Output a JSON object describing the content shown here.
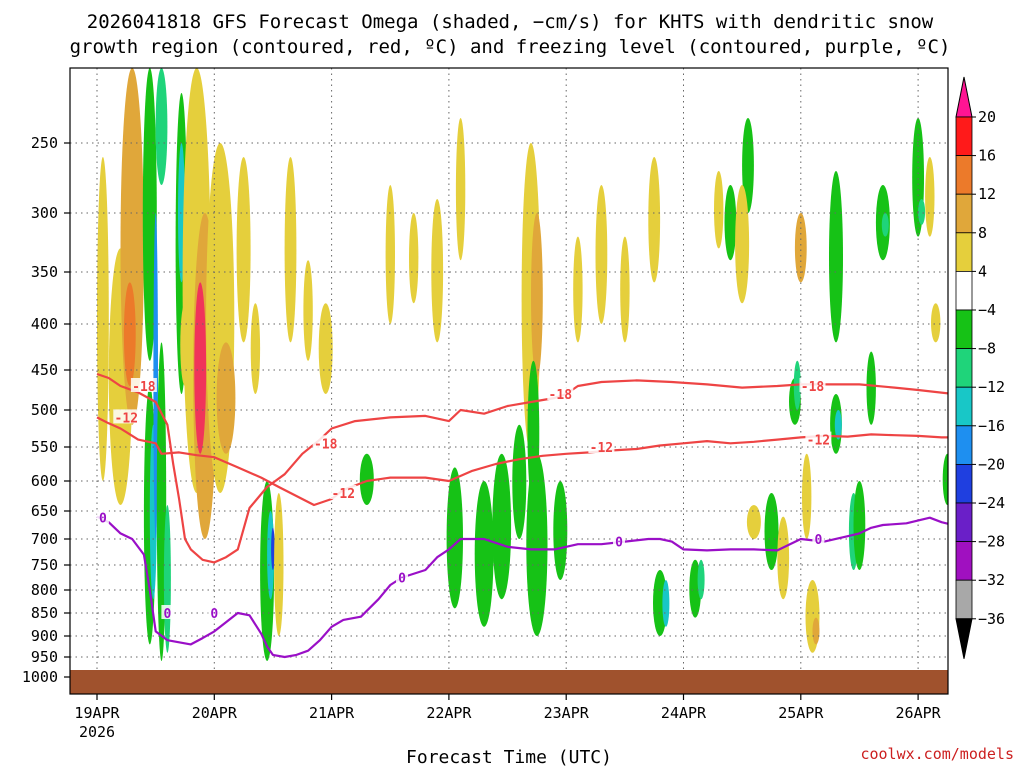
{
  "title_line1": "2026041818 GFS Forecast Omega (shaded, −cm/s) for KHTS with dendritic snow",
  "title_line2": "growth region (contoured, red, ºC) and freezing level (contoured, purple, ºC)",
  "xlabel": "Forecast Time (UTC)",
  "credit": "coolwx.com/models",
  "colors": {
    "red_contour": "#ee4444",
    "purple_contour": "#9a0fc7",
    "ground": "#a0522d",
    "grid": "#666666"
  },
  "chart_data": {
    "type": "heatmap",
    "y_axis": {
      "scale": "pressure",
      "reversed": true,
      "ticks": [
        "250",
        "300",
        "350",
        "400",
        "450",
        "500",
        "550",
        "600",
        "650",
        "700",
        "750",
        "800",
        "850",
        "900",
        "950",
        "1000"
      ]
    },
    "x_axis": {
      "ticks": [
        "19APR",
        "20APR",
        "21APR",
        "22APR",
        "23APR",
        "24APR",
        "25APR",
        "26APR"
      ],
      "year_label": "2026"
    },
    "grid": true,
    "colorbar": {
      "placement": "right",
      "labels": [
        "20",
        "16",
        "12",
        "8",
        "4",
        "−4",
        "−8",
        "−12",
        "−16",
        "−20",
        "−24",
        "−28",
        "−32",
        "−36"
      ],
      "colors": [
        "#ff1a1a",
        "#ec7a2a",
        "#e0a73a",
        "#e5cf3c",
        "#ffffff",
        "#16c216",
        "#1fd47a",
        "#18c7c7",
        "#1e8ff0",
        "#1f3fe0",
        "#6a1fc8",
        "#a010c0",
        "#a8a8a8"
      ],
      "top_cap": "#ff1493",
      "bottom_cap": "#000000"
    },
    "contour_labels": {
      "red": [
        "-18",
        "-12",
        "-18",
        "-12",
        "-18",
        "-12",
        "-18",
        "-12"
      ],
      "purple": [
        "0",
        "0",
        "0",
        "0",
        "0",
        "0"
      ]
    },
    "series": [
      {
        "name": "-18",
        "color": "#ee4444",
        "points": [
          [
            19.0,
            455
          ],
          [
            19.1,
            460
          ],
          [
            19.2,
            470
          ],
          [
            19.35,
            478
          ],
          [
            19.5,
            490
          ],
          [
            19.6,
            520
          ],
          [
            19.65,
            575
          ],
          [
            19.7,
            630
          ],
          [
            19.75,
            700
          ],
          [
            19.8,
            720
          ],
          [
            19.9,
            740
          ],
          [
            20.0,
            745
          ],
          [
            20.1,
            735
          ],
          [
            20.2,
            720
          ],
          [
            20.3,
            645
          ],
          [
            20.45,
            610
          ],
          [
            20.6,
            590
          ],
          [
            20.75,
            560
          ],
          [
            20.9,
            540
          ],
          [
            21.0,
            525
          ],
          [
            21.2,
            515
          ],
          [
            21.5,
            510
          ],
          [
            21.8,
            508
          ],
          [
            22.0,
            515
          ],
          [
            22.1,
            500
          ],
          [
            22.3,
            505
          ],
          [
            22.5,
            495
          ],
          [
            22.7,
            490
          ],
          [
            22.9,
            485
          ],
          [
            23.0,
            480
          ],
          [
            23.1,
            470
          ],
          [
            23.3,
            465
          ],
          [
            23.6,
            463
          ],
          [
            23.9,
            465
          ],
          [
            24.2,
            468
          ],
          [
            24.5,
            472
          ],
          [
            24.8,
            470
          ],
          [
            25.0,
            468
          ],
          [
            25.2,
            468
          ],
          [
            25.5,
            468
          ],
          [
            25.8,
            472
          ],
          [
            26.0,
            475
          ],
          [
            26.3,
            480
          ]
        ]
      },
      {
        "name": "-12",
        "color": "#ee4444",
        "points": [
          [
            19.0,
            510
          ],
          [
            19.1,
            518
          ],
          [
            19.2,
            525
          ],
          [
            19.35,
            540
          ],
          [
            19.5,
            545
          ],
          [
            19.55,
            560
          ],
          [
            19.7,
            558
          ],
          [
            19.85,
            562
          ],
          [
            20.0,
            565
          ],
          [
            20.2,
            580
          ],
          [
            20.4,
            595
          ],
          [
            20.55,
            610
          ],
          [
            20.7,
            625
          ],
          [
            20.85,
            640
          ],
          [
            21.0,
            630
          ],
          [
            21.1,
            615
          ],
          [
            21.3,
            600
          ],
          [
            21.5,
            595
          ],
          [
            21.8,
            595
          ],
          [
            22.0,
            600
          ],
          [
            22.2,
            585
          ],
          [
            22.4,
            575
          ],
          [
            22.6,
            568
          ],
          [
            22.8,
            563
          ],
          [
            23.0,
            560
          ],
          [
            23.2,
            558
          ],
          [
            23.4,
            555
          ],
          [
            23.6,
            553
          ],
          [
            23.8,
            548
          ],
          [
            24.0,
            545
          ],
          [
            24.2,
            542
          ],
          [
            24.4,
            545
          ],
          [
            24.6,
            543
          ],
          [
            24.8,
            540
          ],
          [
            25.0,
            537
          ],
          [
            25.2,
            535
          ],
          [
            25.4,
            536
          ],
          [
            25.6,
            533
          ],
          [
            25.8,
            534
          ],
          [
            26.0,
            535
          ],
          [
            26.2,
            537
          ],
          [
            26.3,
            537
          ]
        ]
      },
      {
        "name": "0",
        "color": "#9a0fc7",
        "points": [
          [
            19.0,
            660
          ],
          [
            19.1,
            670
          ],
          [
            19.2,
            690
          ],
          [
            19.3,
            700
          ],
          [
            19.4,
            730
          ],
          [
            19.45,
            800
          ],
          [
            19.5,
            890
          ],
          [
            19.6,
            910
          ],
          [
            19.7,
            915
          ],
          [
            19.8,
            920
          ],
          [
            19.9,
            905
          ],
          [
            20.0,
            890
          ],
          [
            20.1,
            870
          ],
          [
            20.2,
            850
          ],
          [
            20.3,
            855
          ],
          [
            20.4,
            895
          ],
          [
            20.45,
            925
          ],
          [
            20.5,
            945
          ],
          [
            20.6,
            950
          ],
          [
            20.7,
            945
          ],
          [
            20.8,
            935
          ],
          [
            20.9,
            910
          ],
          [
            21.0,
            880
          ],
          [
            21.1,
            865
          ],
          [
            21.25,
            858
          ],
          [
            21.4,
            820
          ],
          [
            21.5,
            790
          ],
          [
            21.6,
            775
          ],
          [
            21.8,
            760
          ],
          [
            21.9,
            735
          ],
          [
            22.0,
            720
          ],
          [
            22.1,
            700
          ],
          [
            22.3,
            700
          ],
          [
            22.5,
            715
          ],
          [
            22.7,
            720
          ],
          [
            22.9,
            720
          ],
          [
            23.1,
            710
          ],
          [
            23.3,
            710
          ],
          [
            23.5,
            705
          ],
          [
            23.7,
            700
          ],
          [
            23.8,
            700
          ],
          [
            23.9,
            705
          ],
          [
            24.0,
            720
          ],
          [
            24.2,
            722
          ],
          [
            24.4,
            720
          ],
          [
            24.6,
            720
          ],
          [
            24.8,
            722
          ],
          [
            25.0,
            700
          ],
          [
            25.2,
            705
          ],
          [
            25.4,
            695
          ],
          [
            25.5,
            690
          ],
          [
            25.6,
            680
          ],
          [
            25.7,
            675
          ],
          [
            25.9,
            672
          ],
          [
            26.1,
            662
          ],
          [
            26.2,
            670
          ],
          [
            26.3,
            675
          ]
        ]
      }
    ]
  }
}
